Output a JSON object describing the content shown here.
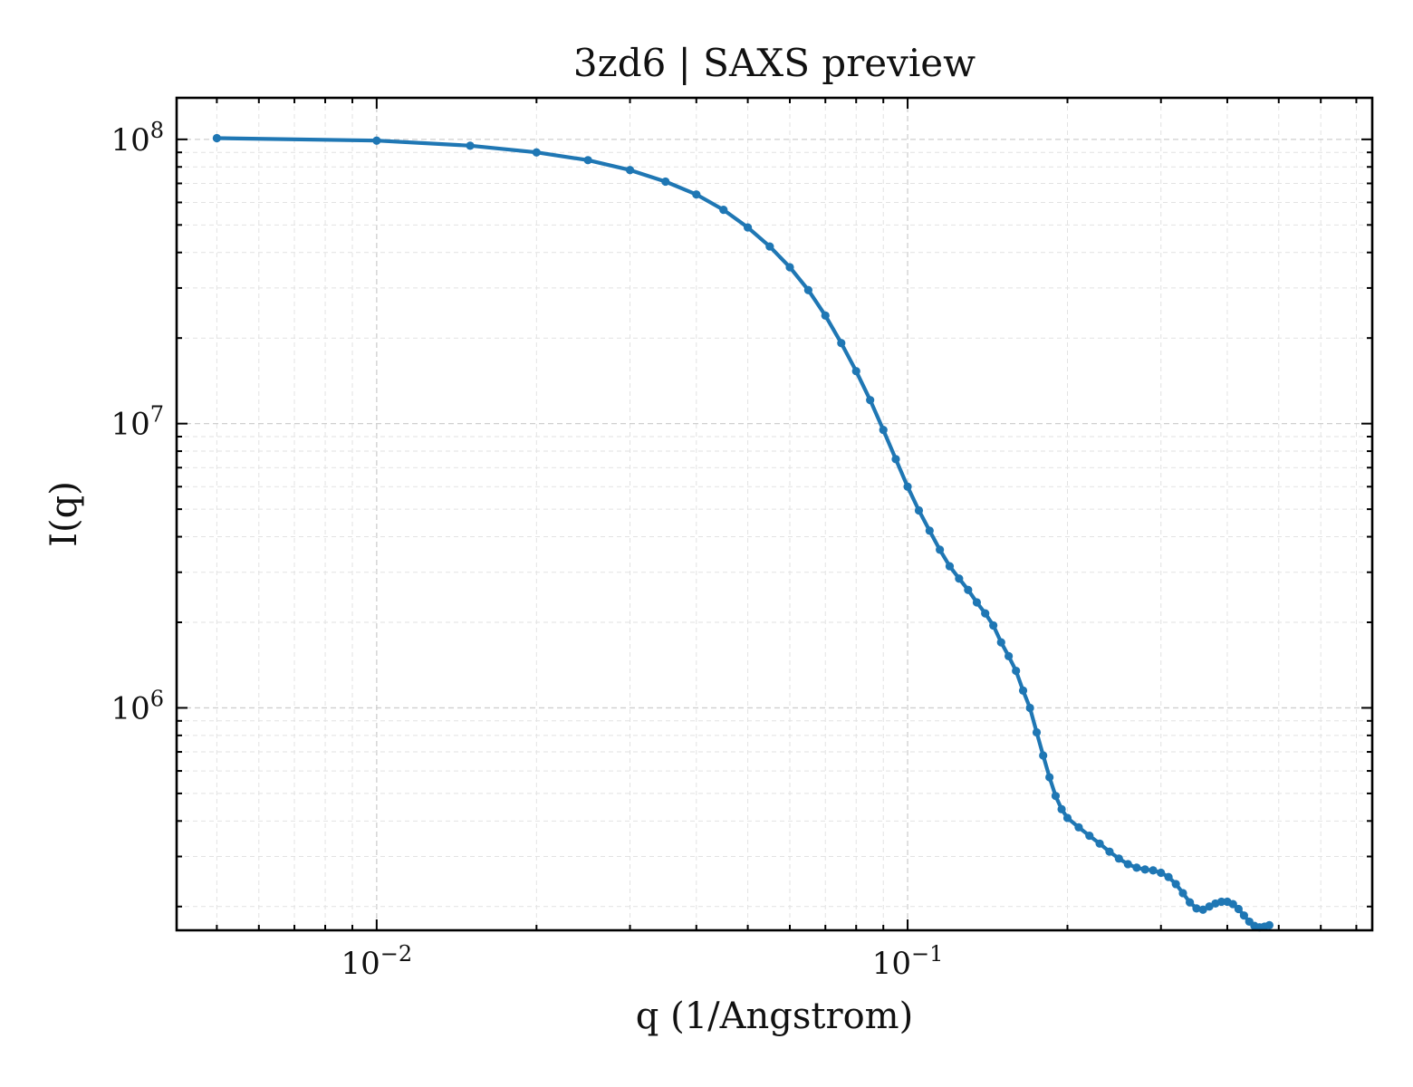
{
  "chart_data": {
    "type": "line",
    "title": "3zd6 | SAXS preview",
    "xlabel": "q (1/Angstrom)",
    "ylabel": "I(q)",
    "xscale": "log",
    "yscale": "log",
    "xlim": [
      0.0042,
      0.75
    ],
    "ylim": [
      165000,
      140000000
    ],
    "grid": "major and minor, dashed",
    "legend": "none",
    "x_ticks": [
      {
        "value": 0.01,
        "label": "10",
        "exp": "−2"
      },
      {
        "value": 0.1,
        "label": "10",
        "exp": "−1"
      }
    ],
    "y_ticks": [
      {
        "value": 1000000,
        "label": "10",
        "exp": "6"
      },
      {
        "value": 10000000,
        "label": "10",
        "exp": "7"
      },
      {
        "value": 100000000,
        "label": "10",
        "exp": "8"
      }
    ],
    "series": [
      {
        "color": "#1f77b4",
        "points": [
          [
            0.005,
            101000000
          ],
          [
            0.01,
            99000000
          ],
          [
            0.015,
            95000000
          ],
          [
            0.02,
            90000000
          ],
          [
            0.025,
            84500000
          ],
          [
            0.03,
            78000000
          ],
          [
            0.035,
            71000000
          ],
          [
            0.04,
            64000000
          ],
          [
            0.045,
            56500000
          ],
          [
            0.05,
            49000000
          ],
          [
            0.055,
            42000000
          ],
          [
            0.06,
            35500000
          ],
          [
            0.065,
            29500000
          ],
          [
            0.07,
            24000000
          ],
          [
            0.075,
            19200000
          ],
          [
            0.08,
            15300000
          ],
          [
            0.085,
            12100000
          ],
          [
            0.09,
            9500000
          ],
          [
            0.095,
            7500000
          ],
          [
            0.1,
            6000000
          ],
          [
            0.105,
            4950000
          ],
          [
            0.11,
            4200000
          ],
          [
            0.115,
            3600000
          ],
          [
            0.12,
            3150000
          ],
          [
            0.125,
            2850000
          ],
          [
            0.13,
            2600000
          ],
          [
            0.135,
            2350000
          ],
          [
            0.14,
            2150000
          ],
          [
            0.145,
            1950000
          ],
          [
            0.15,
            1700000
          ],
          [
            0.155,
            1520000
          ],
          [
            0.16,
            1350000
          ],
          [
            0.165,
            1150000
          ],
          [
            0.17,
            1000000
          ],
          [
            0.175,
            820000
          ],
          [
            0.18,
            680000
          ],
          [
            0.185,
            570000
          ],
          [
            0.19,
            490000
          ],
          [
            0.195,
            440000
          ],
          [
            0.2,
            410000
          ],
          [
            0.21,
            380000
          ],
          [
            0.22,
            355000
          ],
          [
            0.23,
            333000
          ],
          [
            0.24,
            312000
          ],
          [
            0.25,
            295000
          ],
          [
            0.26,
            282000
          ],
          [
            0.27,
            274000
          ],
          [
            0.28,
            270000
          ],
          [
            0.29,
            268000
          ],
          [
            0.3,
            263000
          ],
          [
            0.31,
            254000
          ],
          [
            0.32,
            240000
          ],
          [
            0.33,
            223000
          ],
          [
            0.34,
            207000
          ],
          [
            0.35,
            197000
          ],
          [
            0.36,
            195000
          ],
          [
            0.37,
            200000
          ],
          [
            0.38,
            205000
          ],
          [
            0.39,
            208000
          ],
          [
            0.4,
            208000
          ],
          [
            0.41,
            204000
          ],
          [
            0.42,
            196000
          ],
          [
            0.43,
            186000
          ],
          [
            0.44,
            177000
          ],
          [
            0.45,
            171000
          ],
          [
            0.46,
            169000
          ],
          [
            0.47,
            170000
          ],
          [
            0.48,
            172000
          ]
        ]
      }
    ]
  }
}
